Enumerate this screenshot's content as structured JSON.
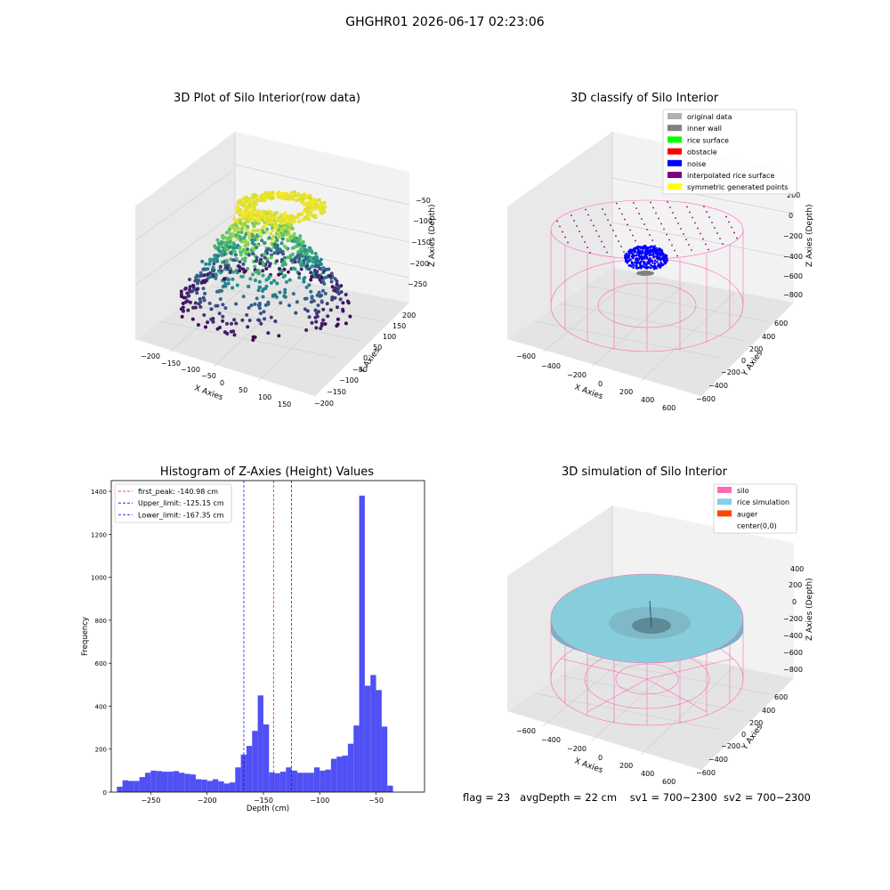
{
  "suptitle": "GHGHR01 2026-06-17 02:23:06",
  "status_bar": {
    "flag": "flag = 23",
    "avg_depth": "avgDepth = 22 cm",
    "sv1": "sv1 = 700~2300",
    "sv2": "sv2 = 700~2300"
  },
  "colors": {
    "pane": "#f2f2f2",
    "silo": "#ff69b4",
    "rice_simulation": "#87cedc",
    "noise": "#0000ff",
    "hist_bar": "#5050f5",
    "first_peak_line": "#ff0000",
    "limit_line": "#0000ff"
  },
  "chart_data": [
    {
      "type": "scatter",
      "projection": "3d",
      "title": "3D Plot of Silo Interior(row data)",
      "xlabel": "X Axies",
      "ylabel": "Y Axies",
      "zlabel": "Z Axies (Depth)",
      "x_ticks": [
        "−200",
        "−150",
        "−100",
        "−50",
        "0",
        "50",
        "100",
        "150"
      ],
      "y_ticks": [
        "200",
        "150",
        "100",
        "50",
        "0",
        "−50",
        "−100",
        "−150",
        "−200"
      ],
      "z_ticks": [
        "−50",
        "−100",
        "−150",
        "−200",
        "−250"
      ],
      "colormap": "viridis",
      "grid": true
    },
    {
      "type": "scatter",
      "projection": "3d",
      "title": "3D classify of Silo Interior",
      "xlabel": "X Axies",
      "ylabel": "Y Axies",
      "zlabel": "Z Axies (Depth)",
      "x_ticks": [
        "−600",
        "−400",
        "−200",
        "0",
        "200",
        "400",
        "600"
      ],
      "y_ticks": [
        "600",
        "400",
        "200",
        "0",
        "−200",
        "−400",
        "−600"
      ],
      "z_ticks": [
        "200",
        "0",
        "−200",
        "−400",
        "−600",
        "−800"
      ],
      "legend_position": "top-right",
      "legend": [
        {
          "label": "original data",
          "color": "#b0b0b0"
        },
        {
          "label": "inner wall",
          "color": "#808080"
        },
        {
          "label": "rice surface",
          "color": "#00ff00"
        },
        {
          "label": "obstacle",
          "color": "#ff0000"
        },
        {
          "label": "noise",
          "color": "#0000ff"
        },
        {
          "label": "interpolated rice surface",
          "color": "#800080"
        },
        {
          "label": "symmetric generated points",
          "color": "#ffff00"
        }
      ],
      "grid": true
    },
    {
      "type": "bar",
      "title": "Histogram of Z-Axies (Height) Values",
      "xlabel": "Depth (cm)",
      "ylabel": "Frequency",
      "xlim": [
        -285,
        -7
      ],
      "ylim": [
        0,
        1450
      ],
      "x_ticks": [
        -250,
        -200,
        -150,
        -100,
        -50
      ],
      "y_ticks": [
        0,
        200,
        400,
        600,
        800,
        1000,
        1200,
        1400
      ],
      "bin_width": 5,
      "bin_start": -280,
      "values": [
        25,
        55,
        52,
        52,
        70,
        90,
        100,
        98,
        95,
        95,
        98,
        90,
        85,
        82,
        60,
        58,
        52,
        60,
        50,
        40,
        45,
        115,
        175,
        215,
        285,
        450,
        315,
        92,
        88,
        95,
        115,
        100,
        90,
        90,
        90,
        115,
        100,
        105,
        155,
        165,
        170,
        225,
        310,
        1380,
        495,
        545,
        475,
        305,
        30
      ],
      "vlines": [
        {
          "label": "first_peak: -140.98 cm",
          "x": -140.98,
          "color": "#ff0000"
        },
        {
          "label": "Upper_limit: -125.15 cm",
          "x": -125.15,
          "color": "#0000ff"
        },
        {
          "label": "Lower_limit: -167.35 cm",
          "x": -167.35,
          "color": "#0000ff"
        }
      ],
      "legend_position": "top-left"
    },
    {
      "type": "surface",
      "projection": "3d",
      "title": "3D simulation of Silo Interior",
      "xlabel": "X Axies",
      "ylabel": "Y Axies",
      "zlabel": "Z Axies (Depth)",
      "x_ticks": [
        "−600",
        "−400",
        "−200",
        "0",
        "200",
        "400",
        "600"
      ],
      "y_ticks": [
        "600",
        "400",
        "200",
        "0",
        "−200",
        "−400",
        "−600"
      ],
      "z_ticks": [
        "400",
        "200",
        "0",
        "−200",
        "−400",
        "−600",
        "−800"
      ],
      "legend_position": "top-right",
      "legend": [
        {
          "label": "silo",
          "color": "#ff69b4"
        },
        {
          "label": "rice simulation",
          "color": "#87ceeb"
        },
        {
          "label": "auger",
          "color": "#ff4500"
        },
        {
          "label": "center(0,0)",
          "color": "#ffffff"
        }
      ],
      "grid": true
    }
  ]
}
